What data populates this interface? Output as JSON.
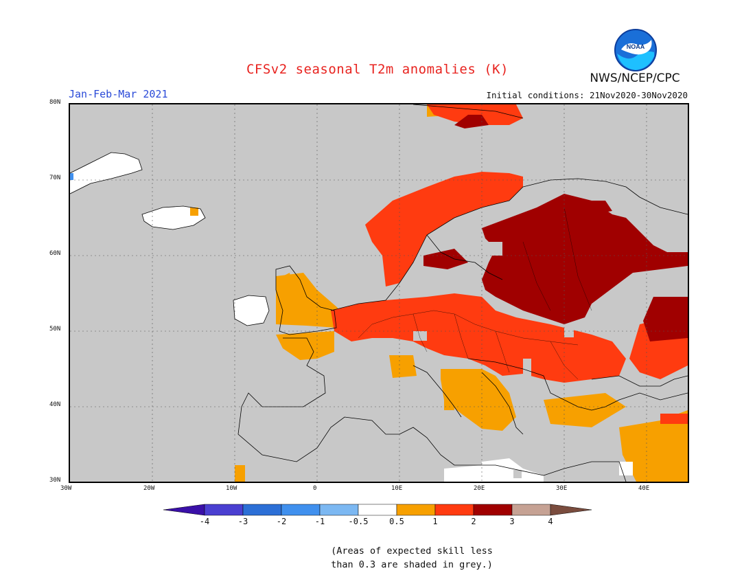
{
  "header": {
    "title": "CFSv2 seasonal T2m anomalies (K)",
    "period": "Jan-Feb-Mar 2021",
    "initial_conditions": "Initial conditions: 21Nov2020-30Nov2020",
    "agency": "NWS/NCEP/CPC",
    "logo_text": "NOAA"
  },
  "map": {
    "lat_labels": [
      "80N",
      "70N",
      "60N",
      "50N",
      "40N",
      "30N"
    ],
    "lon_labels": [
      "30W",
      "20W",
      "10W",
      "0",
      "10E",
      "20E",
      "30E",
      "40E"
    ],
    "mask_color": "#c8c8c8"
  },
  "colorbar": {
    "colors": [
      "#3a10a8",
      "#4a3fd1",
      "#2c6fd6",
      "#4090ee",
      "#7cb8f2",
      "#ffffff",
      "#f7a000",
      "#ff3b10",
      "#a00000",
      "#c6a294",
      "#7a4c3e"
    ],
    "labels": [
      "-4",
      "-3",
      "-2",
      "-1",
      "-0.5",
      "0.5",
      "1",
      "2",
      "3",
      "4"
    ]
  },
  "note": "(Areas of expected skill less\nthan 0.3 are shaded in grey.)"
}
